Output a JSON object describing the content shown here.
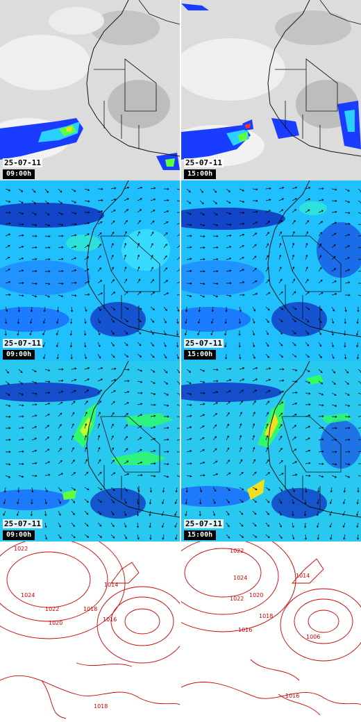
{
  "panels": {
    "row1_left": {
      "date": "25-07-11",
      "time": "09:00h"
    },
    "row1_right": {
      "date": "25-07-11",
      "time": "15:00h"
    },
    "row2_left": {
      "date": "25-07-11",
      "time": "09:00h"
    },
    "row2_right": {
      "date": "25-07-11",
      "time": "15:00h"
    },
    "row3_left": {
      "date": "25-07-11",
      "time": "09:00h"
    },
    "row3_right": {
      "date": "25-07-11",
      "time": "15:00h"
    }
  },
  "isobars": {
    "left": [
      "1022",
      "1024",
      "1022",
      "1020",
      "1018",
      "1016",
      "1014",
      "1018"
    ],
    "right": [
      "1022",
      "1024",
      "1022",
      "1020",
      "1018",
      "1016",
      "1014",
      "1006",
      "1016"
    ]
  },
  "colors": {
    "cloud_background": "#dcdcdc",
    "precip_low": "#1a3cff",
    "precip_mid": "#2ad0ff",
    "precip_high": "#f0e020",
    "wind_background": "#20c0ff",
    "wind_strong": "#1030c0",
    "wind_jet": "#30ff60",
    "isobar_line": "#cc0000"
  }
}
